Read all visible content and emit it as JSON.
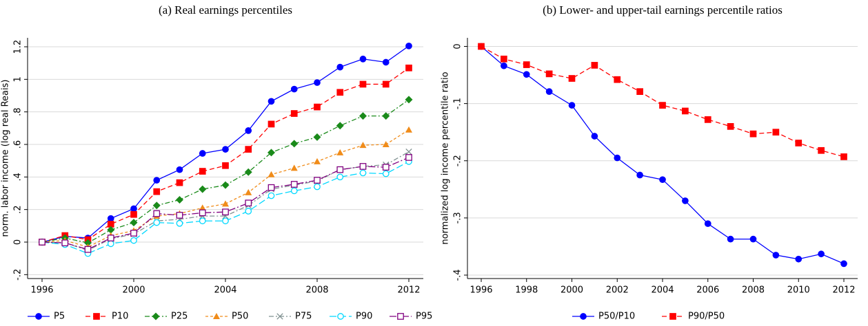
{
  "chart_data": [
    {
      "type": "line",
      "title": "(a) Real earnings percentiles",
      "y_label": "norm. labor income (log real Reais)",
      "x": [
        1996,
        1997,
        1998,
        1999,
        2000,
        2001,
        2002,
        2003,
        2004,
        2005,
        2006,
        2007,
        2008,
        2009,
        2010,
        2011,
        2012
      ],
      "xlim": [
        1996,
        2012
      ],
      "xticks": [
        1996,
        2000,
        2004,
        2008,
        2012
      ],
      "ylim": [
        -0.224,
        1.255
      ],
      "yticks": [
        {
          "value": -0.2,
          "label": "-.2"
        },
        0,
        {
          "value": 0.2,
          "label": ".2"
        },
        {
          "value": 0.4,
          "label": ".4"
        },
        {
          "value": 0.6,
          "label": ".6"
        },
        {
          "value": 0.8,
          "label": ".8"
        },
        1,
        1.2
      ],
      "grid": true,
      "legend": "bottom",
      "series": [
        {
          "name": "P5",
          "color": "#0000ff",
          "dash": "solid",
          "marker": "circle",
          "values": [
            0,
            0.035,
            0.025,
            0.145,
            0.205,
            0.38,
            0.445,
            0.545,
            0.57,
            0.685,
            0.865,
            0.94,
            0.98,
            1.075,
            1.125,
            1.105,
            1.205
          ]
        },
        {
          "name": "P10",
          "color": "#ff0000",
          "dash": "dash",
          "marker": "square",
          "values": [
            0,
            0.04,
            0.015,
            0.11,
            0.17,
            0.31,
            0.365,
            0.435,
            0.47,
            0.57,
            0.725,
            0.79,
            0.83,
            0.92,
            0.97,
            0.97,
            1.07
          ]
        },
        {
          "name": "P25",
          "color": "#1a8a1a",
          "dash": "dashdot",
          "marker": "diamond",
          "values": [
            0,
            0.025,
            -0.005,
            0.075,
            0.12,
            0.225,
            0.26,
            0.325,
            0.35,
            0.43,
            0.55,
            0.605,
            0.645,
            0.715,
            0.775,
            0.775,
            0.875
          ]
        },
        {
          "name": "P50",
          "color": "#f08c1a",
          "dash": "shortdash",
          "marker": "triangle",
          "values": [
            0,
            0.01,
            -0.03,
            0.04,
            0.07,
            0.16,
            0.175,
            0.21,
            0.235,
            0.305,
            0.415,
            0.455,
            0.495,
            0.55,
            0.595,
            0.6,
            0.69
          ]
        },
        {
          "name": "P75",
          "color": "#7f9090",
          "dash": "dashdot",
          "marker": "x",
          "values": [
            0,
            -0.005,
            -0.05,
            0.02,
            0.05,
            0.13,
            0.14,
            0.16,
            0.16,
            0.225,
            0.325,
            0.35,
            0.375,
            0.445,
            0.465,
            0.475,
            0.555
          ]
        },
        {
          "name": "P90",
          "color": "#00d8ff",
          "dash": "longdash",
          "marker": "circle-open",
          "values": [
            0,
            -0.015,
            -0.07,
            -0.01,
            0.01,
            0.12,
            0.115,
            0.13,
            0.13,
            0.19,
            0.285,
            0.315,
            0.34,
            0.4,
            0.425,
            0.42,
            0.495
          ]
        },
        {
          "name": "P95",
          "color": "#800080",
          "dash": "longdashdot",
          "marker": "square-open",
          "values": [
            0,
            -0.005,
            -0.045,
            0.025,
            0.055,
            0.175,
            0.165,
            0.18,
            0.185,
            0.24,
            0.335,
            0.355,
            0.38,
            0.445,
            0.465,
            0.46,
            0.52
          ]
        }
      ]
    },
    {
      "type": "line",
      "title": "(b) Lower- and upper-tail earnings percentile ratios",
      "y_label": "normalized log income percentile ratio",
      "x": [
        1996,
        1997,
        1998,
        1999,
        2000,
        2001,
        2002,
        2003,
        2004,
        2005,
        2006,
        2007,
        2008,
        2009,
        2010,
        2011,
        2012
      ],
      "xlim": [
        1996,
        2012
      ],
      "xticks": [
        1996,
        1998,
        2000,
        2002,
        2004,
        2006,
        2008,
        2010,
        2012
      ],
      "ylim": [
        -0.406,
        0.015
      ],
      "yticks": [
        0,
        {
          "value": -0.1,
          "label": "-.1"
        },
        {
          "value": -0.2,
          "label": "-.2"
        },
        {
          "value": -0.3,
          "label": "-.3"
        },
        {
          "value": -0.4,
          "label": "-.4"
        }
      ],
      "grid": true,
      "legend": "bottom",
      "series": [
        {
          "name": "P50/P10",
          "color": "#0000ff",
          "dash": "solid",
          "marker": "circle",
          "values": [
            0,
            -0.034,
            -0.049,
            -0.079,
            -0.103,
            -0.157,
            -0.195,
            -0.225,
            -0.233,
            -0.27,
            -0.31,
            -0.337,
            -0.337,
            -0.365,
            -0.372,
            -0.363,
            -0.38
          ]
        },
        {
          "name": "P90/P50",
          "color": "#ff0000",
          "dash": "dash",
          "marker": "square",
          "values": [
            0,
            -0.022,
            -0.032,
            -0.048,
            -0.056,
            -0.033,
            -0.058,
            -0.079,
            -0.103,
            -0.113,
            -0.128,
            -0.14,
            -0.153,
            -0.15,
            -0.169,
            -0.182,
            -0.193
          ]
        }
      ]
    }
  ]
}
